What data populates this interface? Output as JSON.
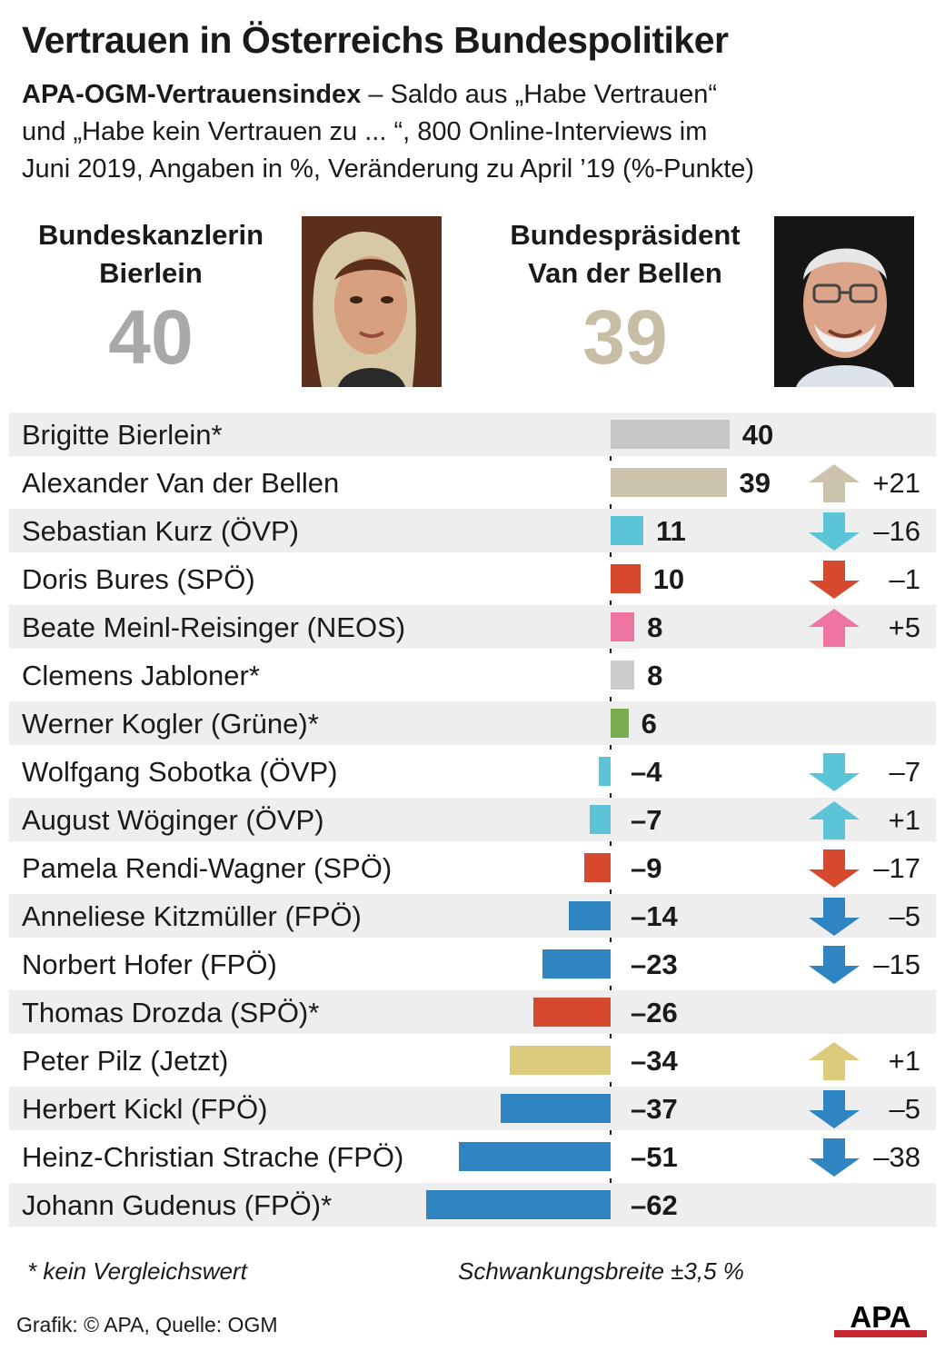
{
  "title": "Vertrauen in Österreichs Bundespolitiker",
  "subtitle": {
    "bold": "APA-OGM-Vertrauensindex",
    "line1": " – Saldo aus „Habe Vertrauen“",
    "line2": "und „Habe kein Vertrauen zu ... “, 800 Online-Interviews im",
    "line3": "Juni 2019, Angaben in %, Veränderung zu April ’19 (%-Punkte)"
  },
  "highlights": [
    {
      "role": "Bundeskanzlerin",
      "name": "Bierlein",
      "value": "40",
      "color": "#a9a9a9"
    },
    {
      "role": "Bundespräsident",
      "name": "Van der Bellen",
      "value": "39",
      "color": "#c8bea6"
    }
  ],
  "chart_data": {
    "type": "bar",
    "orientation": "horizontal",
    "categories": [
      "Brigitte Bierlein*",
      "Alexander Van der Bellen",
      "Sebastian Kurz (ÖVP)",
      "Doris Bures (SPÖ)",
      "Beate Meinl-Reisinger (NEOS)",
      "Clemens Jabloner*",
      "Werner Kogler (Grüne)*",
      "Wolfgang Sobotka (ÖVP)",
      "August Wöginger (ÖVP)",
      "Pamela Rendi-Wagner (SPÖ)",
      "Anneliese Kitzmüller (FPÖ)",
      "Norbert Hofer (FPÖ)",
      "Thomas Drozda (SPÖ)*",
      "Peter Pilz (Jetzt)",
      "Herbert Kickl (FPÖ)",
      "Heinz-Christian Strache (FPÖ)",
      "Johann Gudenus (FPÖ)*"
    ],
    "values": [
      40,
      39,
      11,
      10,
      8,
      8,
      6,
      -4,
      -7,
      -9,
      -14,
      -23,
      -26,
      -34,
      -37,
      -51,
      -62
    ],
    "value_labels": [
      "40",
      "39",
      "11",
      "10",
      "8",
      "8",
      "6",
      "–4",
      "–7",
      "–9",
      "–14",
      "–23",
      "–26",
      "–34",
      "–37",
      "–51",
      "–62"
    ],
    "changes": [
      null,
      21,
      -16,
      -1,
      5,
      null,
      null,
      -7,
      1,
      -17,
      -5,
      -15,
      null,
      1,
      -5,
      -38,
      null
    ],
    "change_labels": [
      "",
      "+21",
      "–16",
      "–1",
      "+5",
      "",
      "",
      "–7",
      "+1",
      "–17",
      "–5",
      "–15",
      "",
      "+1",
      "–5",
      "–38",
      ""
    ],
    "colors": [
      "#c6c6c6",
      "#cbc3ab",
      "#5bc4d6",
      "#d6492f",
      "#ee74a4",
      "#cccccc",
      "#7aad52",
      "#5bc4d6",
      "#5bc4d6",
      "#d6492f",
      "#2f84c2",
      "#2f84c2",
      "#d6492f",
      "#dccb7d",
      "#2f84c2",
      "#2f84c2",
      "#2f84c2"
    ],
    "arrow_colors": [
      null,
      "#cbc3ab",
      "#5bc4d6",
      "#d6492f",
      "#ee74a4",
      null,
      null,
      "#5bc4d6",
      "#5bc4d6",
      "#d6492f",
      "#2f84c2",
      "#2f84c2",
      null,
      "#dccb7d",
      "#2f84c2",
      "#2f84c2",
      null
    ],
    "row_shading": [
      "#eeeeee",
      "#ffffff"
    ],
    "xlim": [
      -62,
      40
    ]
  },
  "footnote_left": "* kein Vergleichswert",
  "footnote_right": "Schwankungsbreite ±3,5 %",
  "credit": "Grafik: © APA, Quelle: OGM",
  "logo_text": "APA"
}
